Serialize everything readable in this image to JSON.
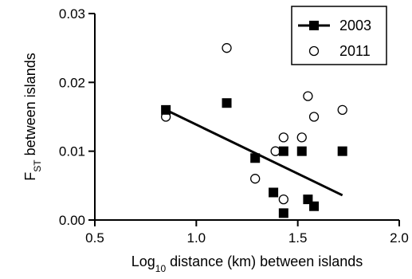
{
  "chart_data": {
    "type": "scatter",
    "xlabel": {
      "prefix": "Log",
      "sub": "10",
      "suffix": " distance (km) between islands"
    },
    "ylabel": {
      "prefix": "F",
      "sub": "ST",
      "suffix": " between islands"
    },
    "xlim": [
      0.5,
      2.0
    ],
    "ylim": [
      0.0,
      0.03
    ],
    "x_ticks": [
      0.5,
      1.0,
      1.5,
      2.0
    ],
    "x_tick_labels": [
      "0.5",
      "1.0",
      "1.5",
      "2.0"
    ],
    "y_ticks": [
      0.0,
      0.01,
      0.02,
      0.03
    ],
    "y_tick_labels": [
      "0.00",
      "0.01",
      "0.02",
      "0.03"
    ],
    "grid": false,
    "legend_position": "top-right",
    "series": [
      {
        "name": "2003",
        "marker": "filled-square",
        "color": "#000000",
        "points": [
          [
            0.85,
            0.016
          ],
          [
            1.15,
            0.017
          ],
          [
            1.29,
            0.009
          ],
          [
            1.38,
            0.004
          ],
          [
            1.43,
            0.01
          ],
          [
            1.43,
            0.001
          ],
          [
            1.52,
            0.01
          ],
          [
            1.55,
            0.003
          ],
          [
            1.58,
            0.002
          ],
          [
            1.72,
            0.01
          ]
        ],
        "regression_line": {
          "x": [
            0.85,
            1.72
          ],
          "y": [
            0.016,
            0.0036
          ]
        }
      },
      {
        "name": "2011",
        "marker": "open-circle",
        "color": "#000000",
        "points": [
          [
            0.85,
            0.015
          ],
          [
            1.15,
            0.025
          ],
          [
            1.29,
            0.006
          ],
          [
            1.39,
            0.01
          ],
          [
            1.43,
            0.012
          ],
          [
            1.43,
            0.003
          ],
          [
            1.52,
            0.012
          ],
          [
            1.55,
            0.018
          ],
          [
            1.58,
            0.015
          ],
          [
            1.72,
            0.016
          ]
        ]
      }
    ]
  }
}
